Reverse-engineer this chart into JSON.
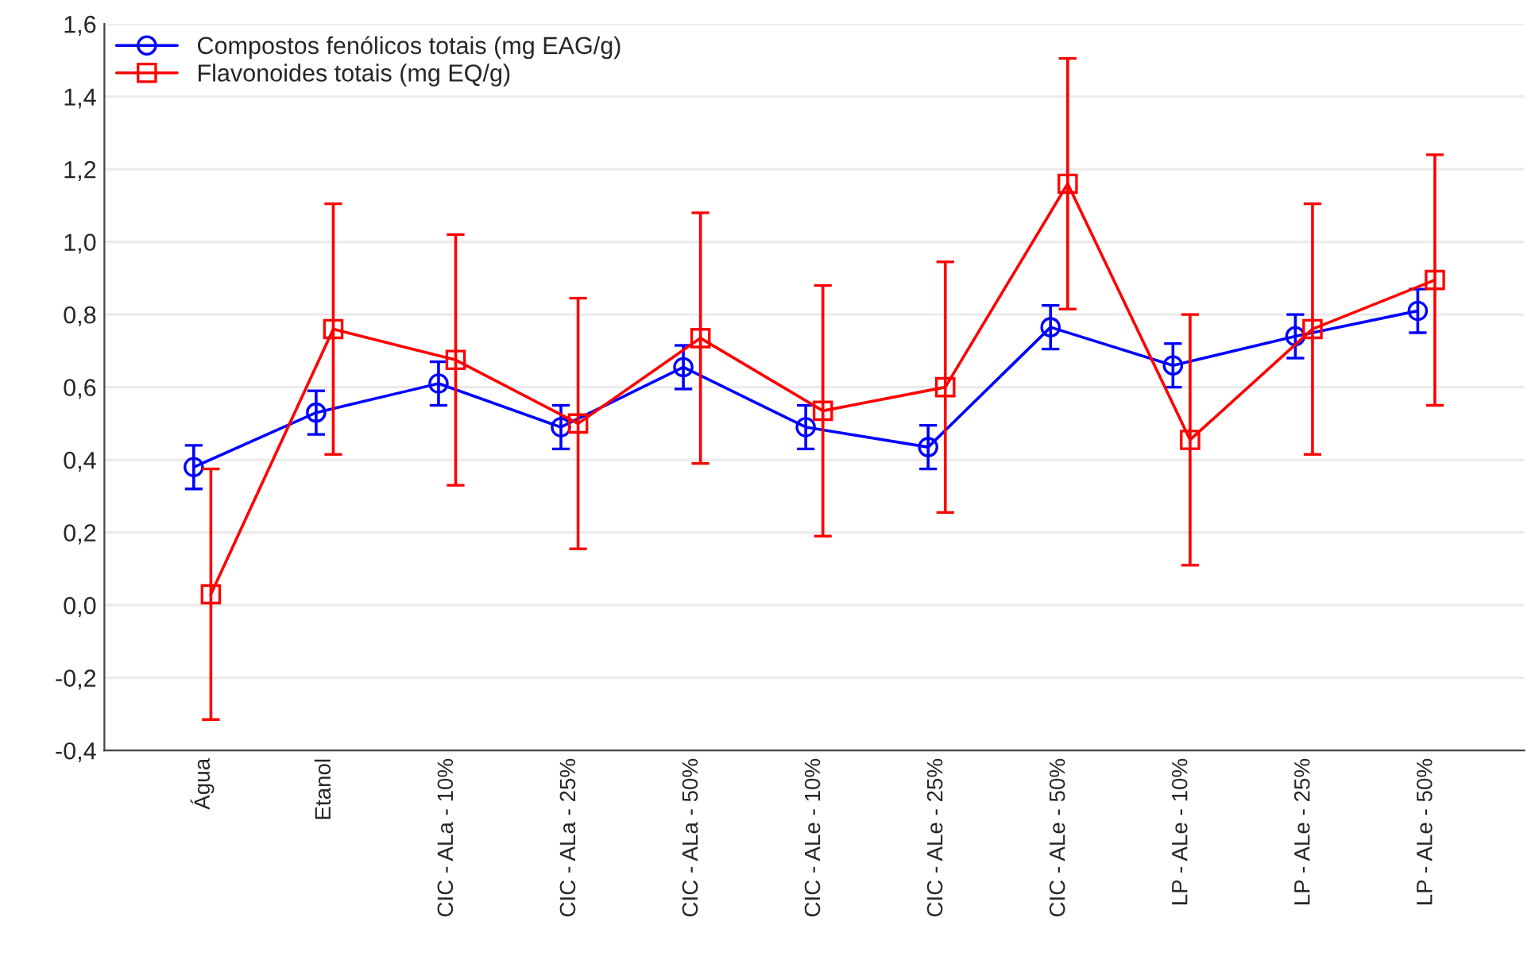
{
  "chart_data": {
    "type": "line",
    "categories": [
      "Água",
      "Etanol",
      "CIC - ALa - 10%",
      "CIC - ALa - 25%",
      "CIC - ALa - 50%",
      "CIC - ALe - 10%",
      "CIC - ALe - 25%",
      "CIC - ALe - 50%",
      "LP - ALe - 10%",
      "LP - ALe - 25%",
      "LP - ALe - 50%"
    ],
    "series": [
      {
        "name": "Compostos fenólicos totais (mg EAG/g)",
        "color": "#0000ff",
        "marker": "circle",
        "values": [
          0.38,
          0.53,
          0.61,
          0.49,
          0.655,
          0.49,
          0.435,
          0.765,
          0.66,
          0.74,
          0.81
        ],
        "errors": [
          0.06,
          0.06,
          0.06,
          0.06,
          0.06,
          0.06,
          0.06,
          0.06,
          0.06,
          0.06,
          0.06
        ]
      },
      {
        "name": "Flavonoides totais (mg EQ/g)",
        "color": "#ff0000",
        "marker": "square",
        "values": [
          0.03,
          0.76,
          0.675,
          0.5,
          0.735,
          0.535,
          0.6,
          1.16,
          0.455,
          0.76,
          0.895
        ],
        "errors": [
          0.345,
          0.345,
          0.345,
          0.345,
          0.345,
          0.345,
          0.345,
          0.345,
          0.345,
          0.345,
          0.345
        ]
      }
    ],
    "ylim": [
      -0.4,
      1.6
    ],
    "yticks": [
      {
        "value": -0.4,
        "label": "-0,4"
      },
      {
        "value": -0.2,
        "label": "-0,2"
      },
      {
        "value": 0.0,
        "label": "0,0"
      },
      {
        "value": 0.2,
        "label": "0,2"
      },
      {
        "value": 0.4,
        "label": "0,4"
      },
      {
        "value": 0.6,
        "label": "0,6"
      },
      {
        "value": 0.8,
        "label": "0,8"
      },
      {
        "value": 1.0,
        "label": "1,0"
      },
      {
        "value": 1.2,
        "label": "1,2"
      },
      {
        "value": 1.4,
        "label": "1,4"
      },
      {
        "value": 1.6,
        "label": "1,6"
      }
    ],
    "grid": "y",
    "legend": "top left"
  }
}
